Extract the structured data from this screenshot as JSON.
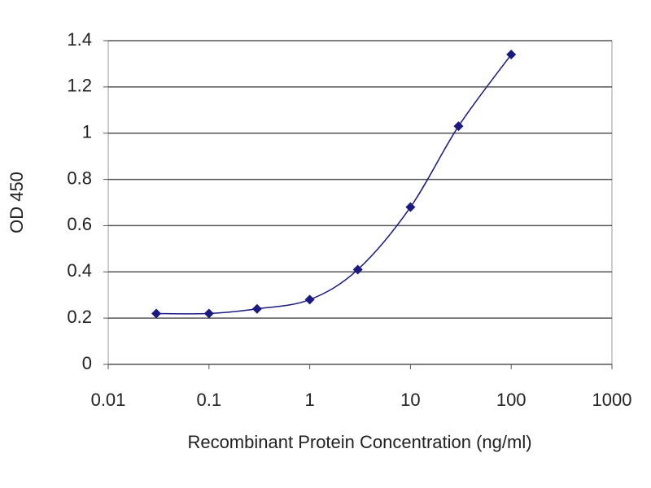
{
  "chart_data": {
    "type": "line",
    "x_label": "Recombinant Protein Concentration (ng/ml)",
    "y_label": "OD 450",
    "x": [
      0.03,
      0.1,
      0.3,
      1,
      3,
      10,
      30,
      100
    ],
    "series": [
      {
        "color": "#1a1a80",
        "values": [
          0.22,
          0.22,
          0.24,
          0.28,
          0.41,
          0.68,
          1.03,
          1.34
        ]
      }
    ],
    "xlim": [
      0.01,
      1000
    ],
    "xticks": [
      0.01,
      0.1,
      1,
      10,
      100,
      1000
    ],
    "log_x": true,
    "ylim": [
      0,
      1.4
    ],
    "yticks": [
      0,
      0.2,
      0.4,
      0.6,
      0.8,
      1,
      1.2,
      1.4
    ],
    "grid": true,
    "markers": true
  }
}
